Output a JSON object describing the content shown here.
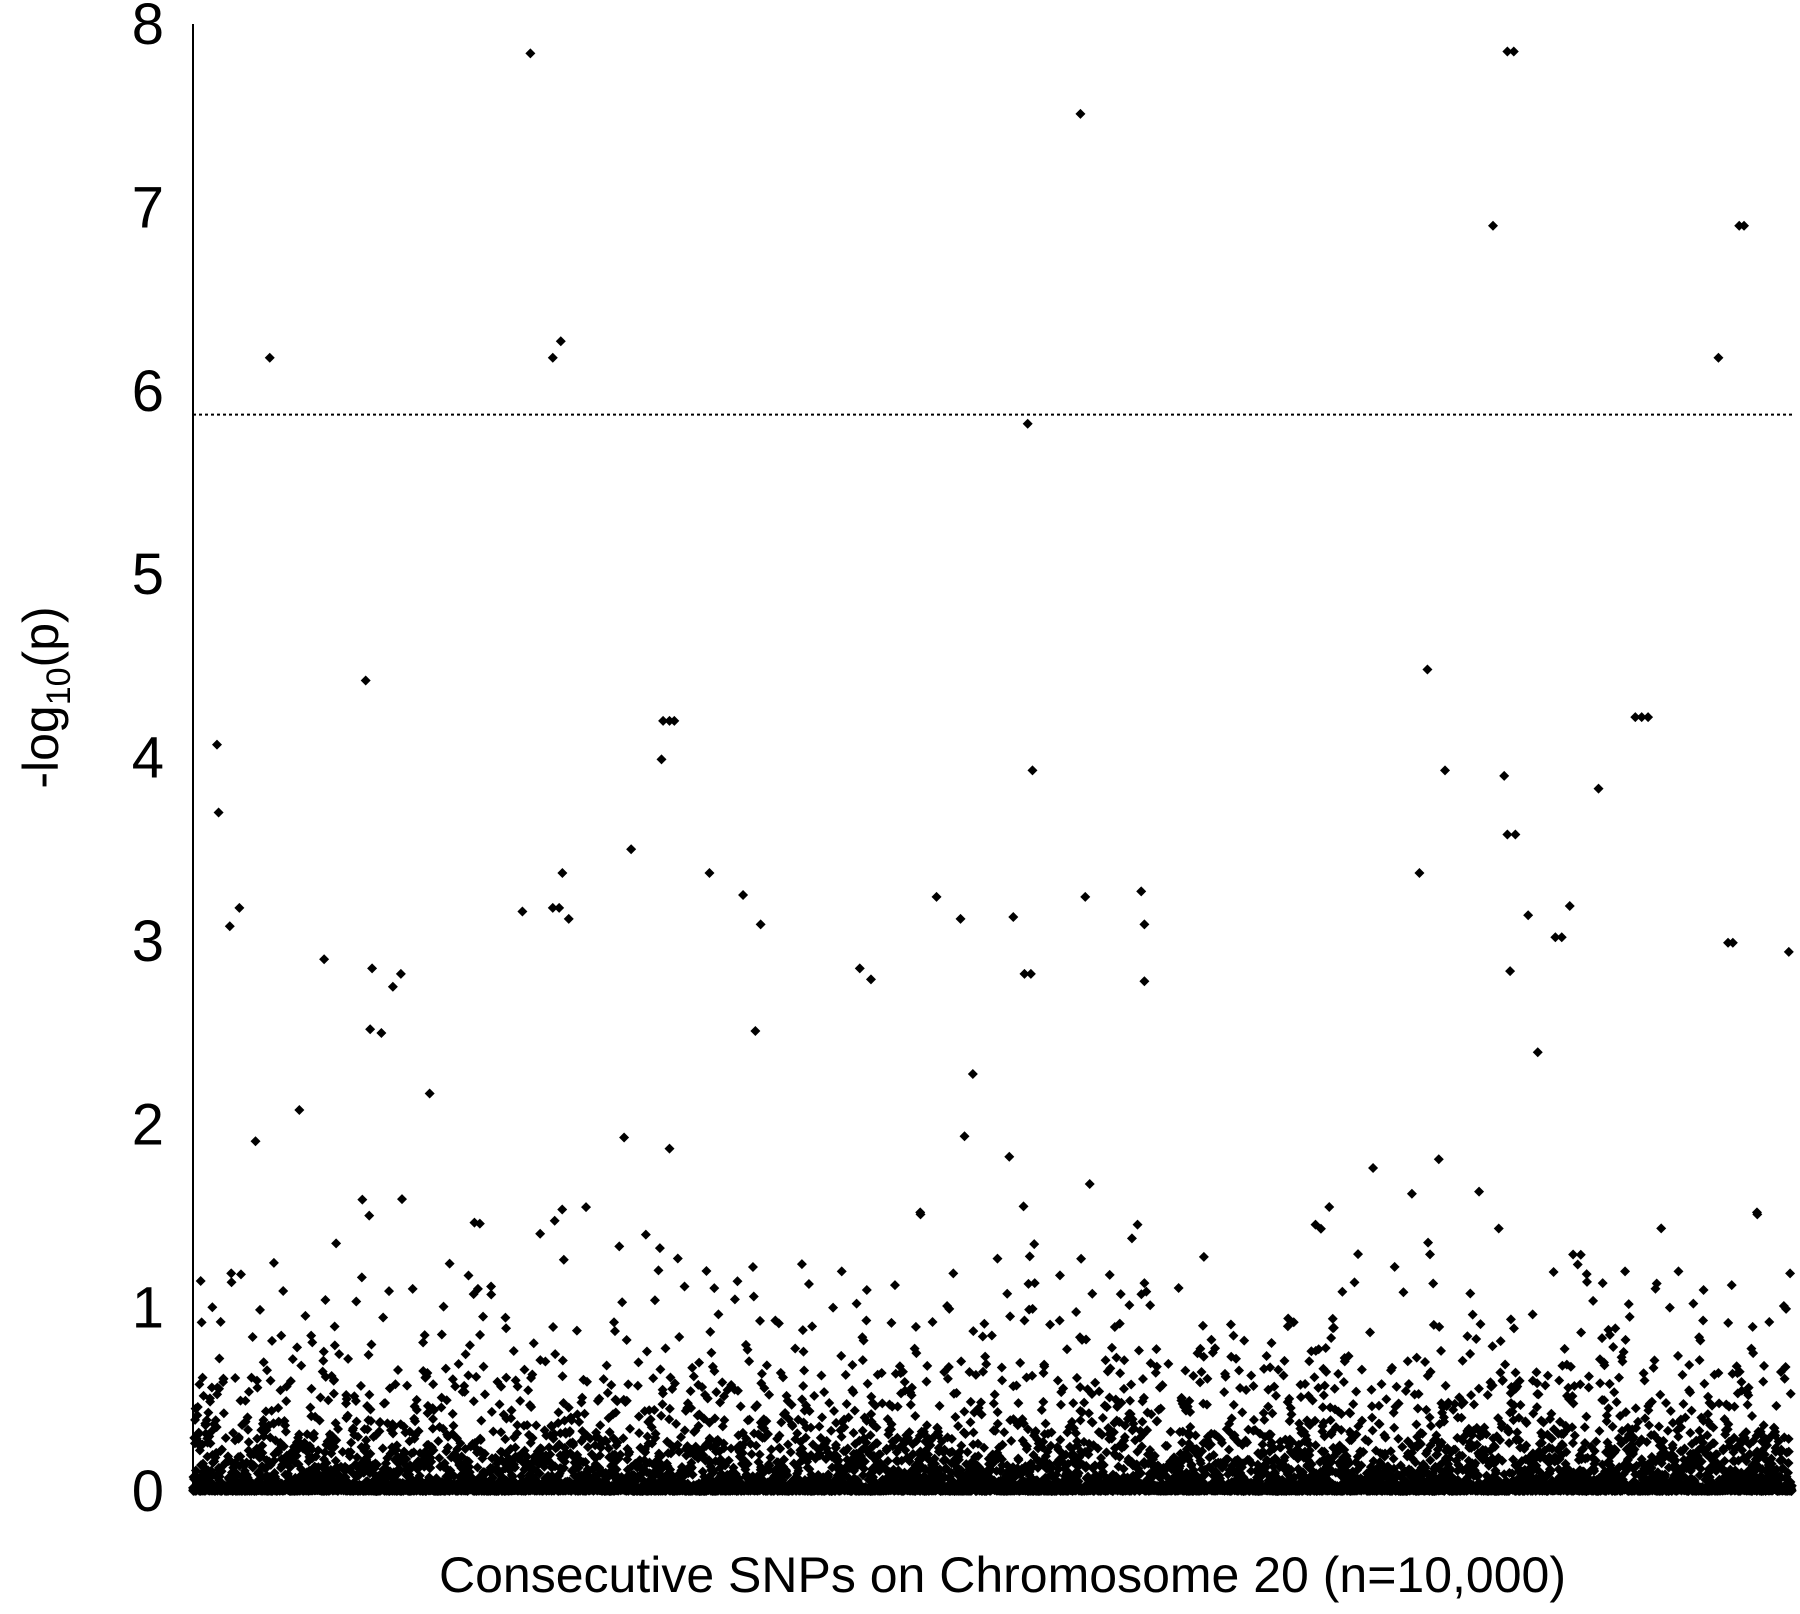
{
  "chart_data": {
    "type": "scatter",
    "title": "",
    "xlabel": "Consecutive SNPs on Chromosome 20 (n=10,000)",
    "ylabel": {
      "prefix": "-log",
      "subscript": "10",
      "suffix": "(p)"
    },
    "xlim": [
      0,
      10000
    ],
    "ylim": [
      0,
      8
    ],
    "yticks": [
      "0",
      "1",
      "2",
      "3",
      "4",
      "5",
      "6",
      "7",
      "8"
    ],
    "grid": false,
    "legend": "none",
    "marker": "diamond",
    "colors": {
      "points": "#000000",
      "axis": "#000000",
      "threshold": "#000000"
    },
    "threshold": {
      "y": 5.87,
      "style": "dotted"
    },
    "notable_points": [
      {
        "x": 2110,
        "y": 7.84
      },
      {
        "x": 5550,
        "y": 7.51
      },
      {
        "x": 8220,
        "y": 7.85
      },
      {
        "x": 8260,
        "y": 7.85
      },
      {
        "x": 8130,
        "y": 6.9
      },
      {
        "x": 9670,
        "y": 6.9
      },
      {
        "x": 9700,
        "y": 6.9
      },
      {
        "x": 480,
        "y": 6.18
      },
      {
        "x": 2250,
        "y": 6.18
      },
      {
        "x": 2300,
        "y": 6.27
      },
      {
        "x": 9540,
        "y": 6.18
      },
      {
        "x": 5220,
        "y": 5.82
      },
      {
        "x": 1080,
        "y": 4.42
      },
      {
        "x": 7720,
        "y": 4.48
      },
      {
        "x": 2940,
        "y": 4.2
      },
      {
        "x": 2980,
        "y": 4.2
      },
      {
        "x": 3010,
        "y": 4.2
      },
      {
        "x": 2930,
        "y": 3.99
      },
      {
        "x": 9020,
        "y": 4.22
      },
      {
        "x": 9060,
        "y": 4.22
      },
      {
        "x": 9100,
        "y": 4.22
      },
      {
        "x": 150,
        "y": 4.07
      },
      {
        "x": 160,
        "y": 3.7
      },
      {
        "x": 5250,
        "y": 3.93
      },
      {
        "x": 7830,
        "y": 3.93
      },
      {
        "x": 8200,
        "y": 3.9
      },
      {
        "x": 8220,
        "y": 3.58
      },
      {
        "x": 8270,
        "y": 3.58
      },
      {
        "x": 8790,
        "y": 3.83
      },
      {
        "x": 2740,
        "y": 3.5
      },
      {
        "x": 3230,
        "y": 3.37
      },
      {
        "x": 2310,
        "y": 3.37
      },
      {
        "x": 7670,
        "y": 3.37
      },
      {
        "x": 5580,
        "y": 3.24
      },
      {
        "x": 5930,
        "y": 3.27
      },
      {
        "x": 4650,
        "y": 3.24
      },
      {
        "x": 3440,
        "y": 3.25
      },
      {
        "x": 2060,
        "y": 3.16
      },
      {
        "x": 2250,
        "y": 3.18
      },
      {
        "x": 2290,
        "y": 3.18
      },
      {
        "x": 2350,
        "y": 3.12
      },
      {
        "x": 290,
        "y": 3.18
      },
      {
        "x": 230,
        "y": 3.08
      },
      {
        "x": 4800,
        "y": 3.12
      },
      {
        "x": 3550,
        "y": 3.09
      },
      {
        "x": 5950,
        "y": 3.09
      },
      {
        "x": 5950,
        "y": 2.78
      },
      {
        "x": 5130,
        "y": 3.13
      },
      {
        "x": 8350,
        "y": 3.14
      },
      {
        "x": 8610,
        "y": 3.19
      },
      {
        "x": 9600,
        "y": 2.99
      },
      {
        "x": 9630,
        "y": 2.99
      },
      {
        "x": 9980,
        "y": 2.94
      },
      {
        "x": 8520,
        "y": 3.02
      },
      {
        "x": 8560,
        "y": 3.02
      },
      {
        "x": 820,
        "y": 2.9
      },
      {
        "x": 1120,
        "y": 2.85
      },
      {
        "x": 1300,
        "y": 2.82
      },
      {
        "x": 1250,
        "y": 2.75
      },
      {
        "x": 4170,
        "y": 2.85
      },
      {
        "x": 4240,
        "y": 2.79
      },
      {
        "x": 5200,
        "y": 2.82
      },
      {
        "x": 5240,
        "y": 2.82
      }
    ],
    "series": [
      {
        "generator": "background",
        "count": 10000,
        "y_distribution": "null -log10(p), most values near 0, sparse tail up to ~3"
      }
    ]
  }
}
